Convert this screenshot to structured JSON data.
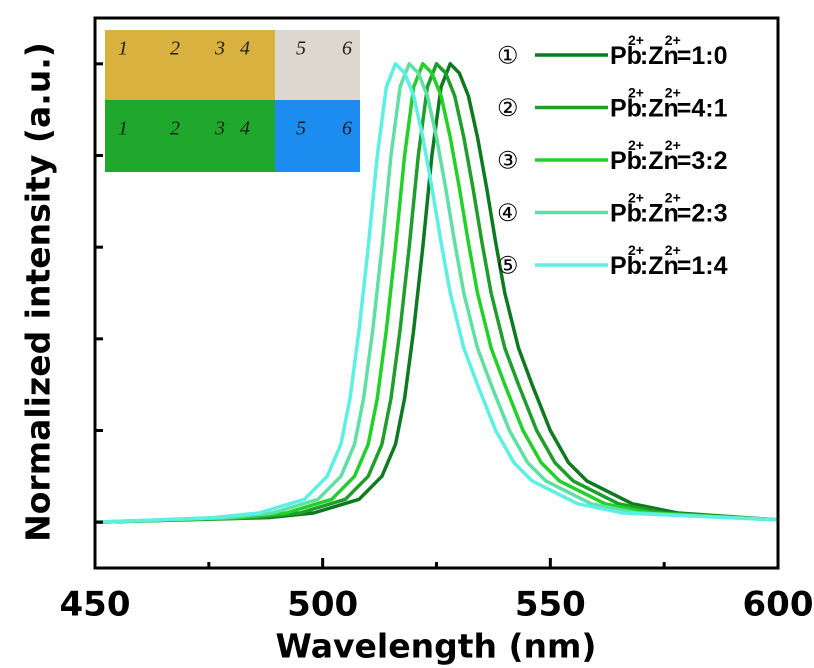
{
  "chart_data": {
    "type": "line",
    "xlabel": "Wavelength (nm)",
    "ylabel": "Normalized intensity (a.u.)",
    "xlim": [
      450,
      600
    ],
    "xticks": [
      450,
      500,
      550,
      600
    ],
    "xminorticks": [
      475,
      525,
      575
    ],
    "ylim": [
      -0.1,
      1.1
    ],
    "yticks": [
      0,
      0.2,
      0.4,
      0.6,
      0.8,
      1.0
    ],
    "legend": "upper right",
    "legend_markers": [
      "①",
      "②",
      "③",
      "④",
      "⑤"
    ],
    "series": [
      {
        "name": "Pb2+:Zn2+=1:0",
        "color": "#0e7a20",
        "x": [
          450,
          488,
          498,
          508,
          513,
          516,
          518,
          520,
          522,
          524,
          526,
          528,
          530,
          532,
          534,
          536,
          538,
          540,
          543,
          546,
          550,
          554,
          558,
          568,
          578,
          600
        ],
        "values": [
          0,
          0.01,
          0.02,
          0.05,
          0.1,
          0.17,
          0.27,
          0.42,
          0.6,
          0.8,
          0.95,
          1,
          0.98,
          0.93,
          0.84,
          0.73,
          0.61,
          0.5,
          0.38,
          0.3,
          0.2,
          0.13,
          0.09,
          0.04,
          0.02,
          0.005
        ]
      },
      {
        "name": "Pb2+:Zn2+=4:1",
        "color": "#1f9e2c",
        "x": [
          450,
          485,
          495,
          505,
          510,
          513,
          515,
          517,
          519,
          521,
          523,
          525,
          527,
          529,
          531,
          533,
          535,
          537,
          540,
          543,
          547,
          551,
          555,
          565,
          575,
          600
        ],
        "values": [
          0,
          0.01,
          0.02,
          0.05,
          0.1,
          0.17,
          0.27,
          0.42,
          0.6,
          0.8,
          0.95,
          1,
          0.98,
          0.93,
          0.84,
          0.73,
          0.61,
          0.5,
          0.38,
          0.3,
          0.2,
          0.13,
          0.09,
          0.04,
          0.02,
          0.005
        ]
      },
      {
        "name": "Pb2+:Zn2+=3:2",
        "color": "#22d02a",
        "x": [
          450,
          482,
          492,
          502,
          507,
          510,
          512,
          514,
          516,
          518,
          520,
          522,
          524,
          526,
          528,
          530,
          532,
          534,
          537,
          540,
          544,
          548,
          552,
          562,
          572,
          600
        ],
        "values": [
          0,
          0.01,
          0.02,
          0.05,
          0.1,
          0.17,
          0.27,
          0.42,
          0.6,
          0.8,
          0.95,
          1,
          0.98,
          0.93,
          0.84,
          0.73,
          0.61,
          0.5,
          0.38,
          0.3,
          0.2,
          0.13,
          0.09,
          0.04,
          0.02,
          0.005
        ]
      },
      {
        "name": "Pb2+:Zn2+=2:3",
        "color": "#5ee0a4",
        "x": [
          450,
          479,
          489,
          499,
          504,
          507,
          509,
          511,
          513,
          515,
          517,
          519,
          521,
          523,
          525,
          527,
          529,
          531,
          534,
          537,
          541,
          545,
          549,
          559,
          569,
          600
        ],
        "values": [
          0,
          0.01,
          0.02,
          0.05,
          0.1,
          0.17,
          0.27,
          0.42,
          0.6,
          0.8,
          0.95,
          1,
          0.98,
          0.93,
          0.84,
          0.73,
          0.61,
          0.5,
          0.38,
          0.3,
          0.2,
          0.13,
          0.09,
          0.04,
          0.02,
          0.005
        ]
      },
      {
        "name": "Pb2+:Zn2+=1:4",
        "color": "#5cf0e4",
        "x": [
          450,
          476,
          486,
          496,
          501,
          504,
          506,
          508,
          510,
          512,
          514,
          516,
          518,
          520,
          522,
          524,
          526,
          528,
          531,
          534,
          538,
          542,
          546,
          556,
          566,
          600
        ],
        "values": [
          0,
          0.01,
          0.02,
          0.05,
          0.1,
          0.17,
          0.27,
          0.42,
          0.6,
          0.8,
          0.95,
          1,
          0.98,
          0.93,
          0.84,
          0.73,
          0.61,
          0.5,
          0.38,
          0.3,
          0.2,
          0.13,
          0.09,
          0.04,
          0.02,
          0.005
        ]
      }
    ]
  },
  "inset": {
    "top_labels": [
      "1",
      "2",
      "3",
      "4",
      "5",
      "6"
    ],
    "bottom_labels": [
      "1",
      "2",
      "3",
      "4",
      "5",
      "6"
    ]
  }
}
